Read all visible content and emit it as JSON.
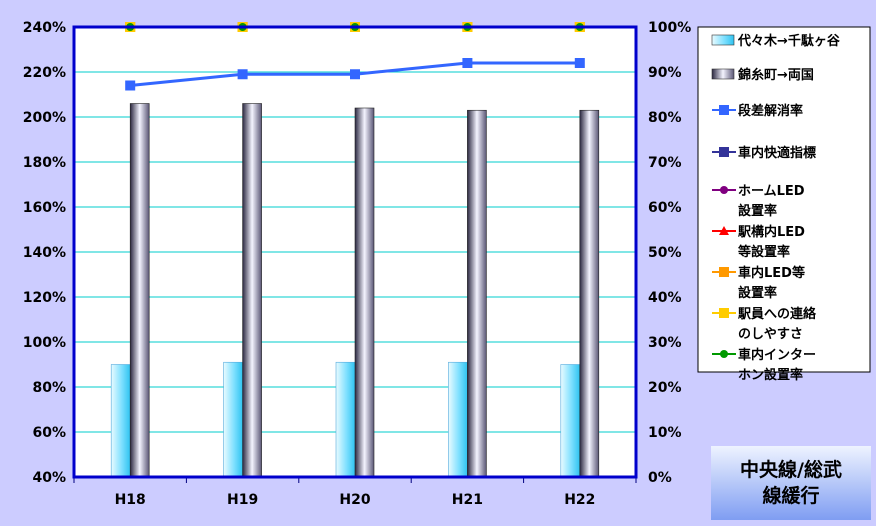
{
  "chart_data": {
    "type": "bar",
    "categories": [
      "H18",
      "H19",
      "H20",
      "H21",
      "H22"
    ],
    "ylim_left": [
      0.4,
      2.4
    ],
    "ylim_right": [
      0,
      1
    ],
    "left_ticks": [
      "40%",
      "60%",
      "80%",
      "100%",
      "120%",
      "140%",
      "160%",
      "180%",
      "200%",
      "220%",
      "240%"
    ],
    "right_ticks": [
      "0%",
      "10%",
      "20%",
      "30%",
      "40%",
      "50%",
      "60%",
      "70%",
      "80%",
      "90%",
      "100%"
    ],
    "grid": true,
    "legend_position": "right",
    "series": [
      {
        "name": "代々木→千駄ヶ谷",
        "kind": "bar",
        "axis": "left",
        "color": "#7fe0ff",
        "values": [
          0.9,
          0.91,
          0.91,
          0.91,
          0.9
        ]
      },
      {
        "name": "錦糸町→両国",
        "kind": "bar",
        "axis": "left",
        "color": "#5a5675",
        "values": [
          2.06,
          2.06,
          2.04,
          2.03,
          2.03
        ]
      },
      {
        "name": "段差解消率",
        "kind": "line",
        "axis": "right",
        "color": "#3366ff",
        "marker": "square",
        "values": [
          0.87,
          0.895,
          0.895,
          0.92,
          0.92
        ]
      },
      {
        "name": "車内快適指標",
        "kind": "line",
        "axis": "right",
        "color": "#333399",
        "marker": "square",
        "values": [
          null,
          null,
          null,
          null,
          null
        ]
      },
      {
        "name": "ホームLED設置率",
        "kind": "line",
        "axis": "right",
        "color": "#800080",
        "marker": "circle",
        "values": [
          1,
          1,
          1,
          1,
          1
        ]
      },
      {
        "name": "駅構内LED等設置率",
        "kind": "line",
        "axis": "right",
        "color": "#ff0000",
        "marker": "triangle",
        "values": [
          1,
          1,
          1,
          1,
          1
        ]
      },
      {
        "name": "車内LED等設置率",
        "kind": "line",
        "axis": "right",
        "color": "#ff9900",
        "marker": "square",
        "values": [
          1,
          1,
          1,
          1,
          1
        ]
      },
      {
        "name": "駅員への連絡のしやすさ",
        "kind": "line",
        "axis": "right",
        "color": "#ffcc00",
        "marker": "square",
        "values": [
          1,
          1,
          1,
          1,
          1
        ]
      },
      {
        "name": "車内インターホン設置率",
        "kind": "line",
        "axis": "right",
        "color": "#009900",
        "marker": "circle",
        "values": [
          1,
          1,
          1,
          1,
          1
        ]
      }
    ],
    "legend_lines": [
      [
        "代々木→千駄ヶ谷"
      ],
      [
        "錦糸町→両国"
      ],
      [
        "段差解消率"
      ],
      [
        "車内快適指標"
      ],
      [
        "ホームLED",
        "設置率"
      ],
      [
        "駅構内LED",
        "等設置率"
      ],
      [
        "車内LED等",
        "設置率"
      ],
      [
        "駅員への連絡",
        "のしやすさ"
      ],
      [
        "車内インター",
        "ホン設置率"
      ]
    ]
  },
  "badge": {
    "text": "中央線/総武線緩行"
  }
}
